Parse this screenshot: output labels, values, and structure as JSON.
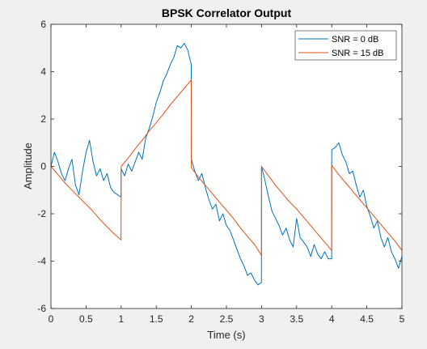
{
  "chart_data": {
    "type": "line",
    "title": "BPSK Correlator Output",
    "xlabel": "Time (s)",
    "ylabel": "Amplitude",
    "xlim": [
      0,
      5
    ],
    "ylim": [
      -6,
      6
    ],
    "xticks": [
      0,
      0.5,
      1,
      1.5,
      2,
      2.5,
      3,
      3.5,
      4,
      4.5,
      5
    ],
    "xtick_labels": [
      "0",
      "0.5",
      "1",
      "1.5",
      "2",
      "2.5",
      "3",
      "3.5",
      "4",
      "4.5",
      "5"
    ],
    "yticks": [
      -6,
      -4,
      -2,
      0,
      2,
      4,
      6
    ],
    "ytick_labels": [
      "-6",
      "-4",
      "-2",
      "0",
      "2",
      "4",
      "6"
    ],
    "grid": false,
    "legend_position": "top-right",
    "series": [
      {
        "name": "SNR = 0 dB",
        "color": "#0072bd",
        "x": [
          0,
          0.05,
          0.1,
          0.15,
          0.2,
          0.25,
          0.3,
          0.35,
          0.4,
          0.45,
          0.5,
          0.55,
          0.6,
          0.65,
          0.7,
          0.75,
          0.8,
          0.85,
          0.9,
          0.95,
          0.999,
          1.0,
          1.05,
          1.1,
          1.15,
          1.2,
          1.25,
          1.3,
          1.35,
          1.4,
          1.45,
          1.5,
          1.55,
          1.6,
          1.65,
          1.7,
          1.75,
          1.8,
          1.85,
          1.9,
          1.95,
          1.999,
          2.0,
          2.05,
          2.1,
          2.15,
          2.2,
          2.25,
          2.3,
          2.35,
          2.4,
          2.45,
          2.5,
          2.55,
          2.6,
          2.65,
          2.7,
          2.75,
          2.8,
          2.85,
          2.9,
          2.95,
          2.999,
          3.0,
          3.05,
          3.1,
          3.15,
          3.2,
          3.25,
          3.3,
          3.35,
          3.4,
          3.45,
          3.5,
          3.55,
          3.6,
          3.65,
          3.7,
          3.75,
          3.8,
          3.85,
          3.9,
          3.95,
          3.999,
          4.0,
          4.05,
          4.1,
          4.15,
          4.2,
          4.25,
          4.3,
          4.35,
          4.4,
          4.45,
          4.5,
          4.55,
          4.6,
          4.65,
          4.7,
          4.75,
          4.8,
          4.85,
          4.9,
          4.95,
          5.0
        ],
        "y": [
          0,
          0.6,
          0.2,
          -0.3,
          -0.6,
          -0.1,
          0.3,
          -0.8,
          -1.2,
          -0.2,
          0.6,
          1.1,
          0.2,
          -0.4,
          -0.1,
          -0.6,
          -0.3,
          -0.9,
          -1.1,
          -1.2,
          -1.3,
          -0.1,
          -0.4,
          0.1,
          -0.2,
          0.2,
          0.6,
          0.3,
          1.2,
          1.6,
          2.1,
          2.7,
          3.1,
          3.6,
          3.9,
          4.3,
          4.6,
          5.1,
          5.0,
          5.2,
          4.9,
          4.3,
          0.3,
          -0.2,
          -0.6,
          -0.3,
          -0.9,
          -1.4,
          -1.8,
          -1.6,
          -2.3,
          -2.0,
          -2.5,
          -2.7,
          -3.1,
          -3.5,
          -3.9,
          -4.2,
          -4.6,
          -4.5,
          -4.8,
          -5.0,
          -4.9,
          0.0,
          -0.6,
          -1.3,
          -1.9,
          -2.2,
          -2.5,
          -2.9,
          -2.6,
          -3.1,
          -3.4,
          -2.2,
          -3.0,
          -3.2,
          -3.4,
          -3.8,
          -3.3,
          -3.7,
          -3.9,
          -3.6,
          -3.9,
          -3.9,
          0.7,
          0.8,
          1.0,
          0.5,
          0.2,
          -0.3,
          -0.2,
          -0.8,
          -1.3,
          -1.0,
          -1.7,
          -2.1,
          -2.6,
          -2.3,
          -3.0,
          -3.4,
          -3.0,
          -3.6,
          -3.9,
          -4.3,
          -3.8
        ]
      },
      {
        "name": "SNR = 15 dB",
        "color": "#d95319",
        "x": [
          0,
          0.1,
          0.2,
          0.3,
          0.4,
          0.5,
          0.6,
          0.7,
          0.8,
          0.9,
          0.999,
          1.0,
          1.1,
          1.2,
          1.3,
          1.4,
          1.5,
          1.6,
          1.7,
          1.8,
          1.9,
          1.999,
          2.0,
          2.1,
          2.2,
          2.3,
          2.4,
          2.5,
          2.6,
          2.7,
          2.8,
          2.9,
          2.999,
          3.0,
          3.1,
          3.2,
          3.3,
          3.4,
          3.5,
          3.6,
          3.7,
          3.8,
          3.9,
          3.999,
          4.0,
          4.1,
          4.2,
          4.3,
          4.4,
          4.5,
          4.6,
          4.7,
          4.8,
          4.9,
          5.0
        ],
        "y": [
          0,
          -0.35,
          -0.7,
          -1.0,
          -1.3,
          -1.6,
          -1.9,
          -2.25,
          -2.55,
          -2.85,
          -3.1,
          0,
          0.35,
          0.75,
          1.1,
          1.5,
          1.85,
          2.2,
          2.6,
          2.95,
          3.3,
          3.65,
          -0.05,
          -0.45,
          -0.8,
          -1.15,
          -1.5,
          -1.85,
          -2.2,
          -2.6,
          -2.95,
          -3.3,
          -3.75,
          0,
          -0.4,
          -0.8,
          -1.15,
          -1.5,
          -1.8,
          -2.15,
          -2.5,
          -2.85,
          -3.2,
          -3.55,
          0.05,
          -0.35,
          -0.7,
          -1.05,
          -1.4,
          -1.75,
          -2.1,
          -2.45,
          -2.8,
          -3.15,
          -3.55
        ]
      }
    ]
  }
}
